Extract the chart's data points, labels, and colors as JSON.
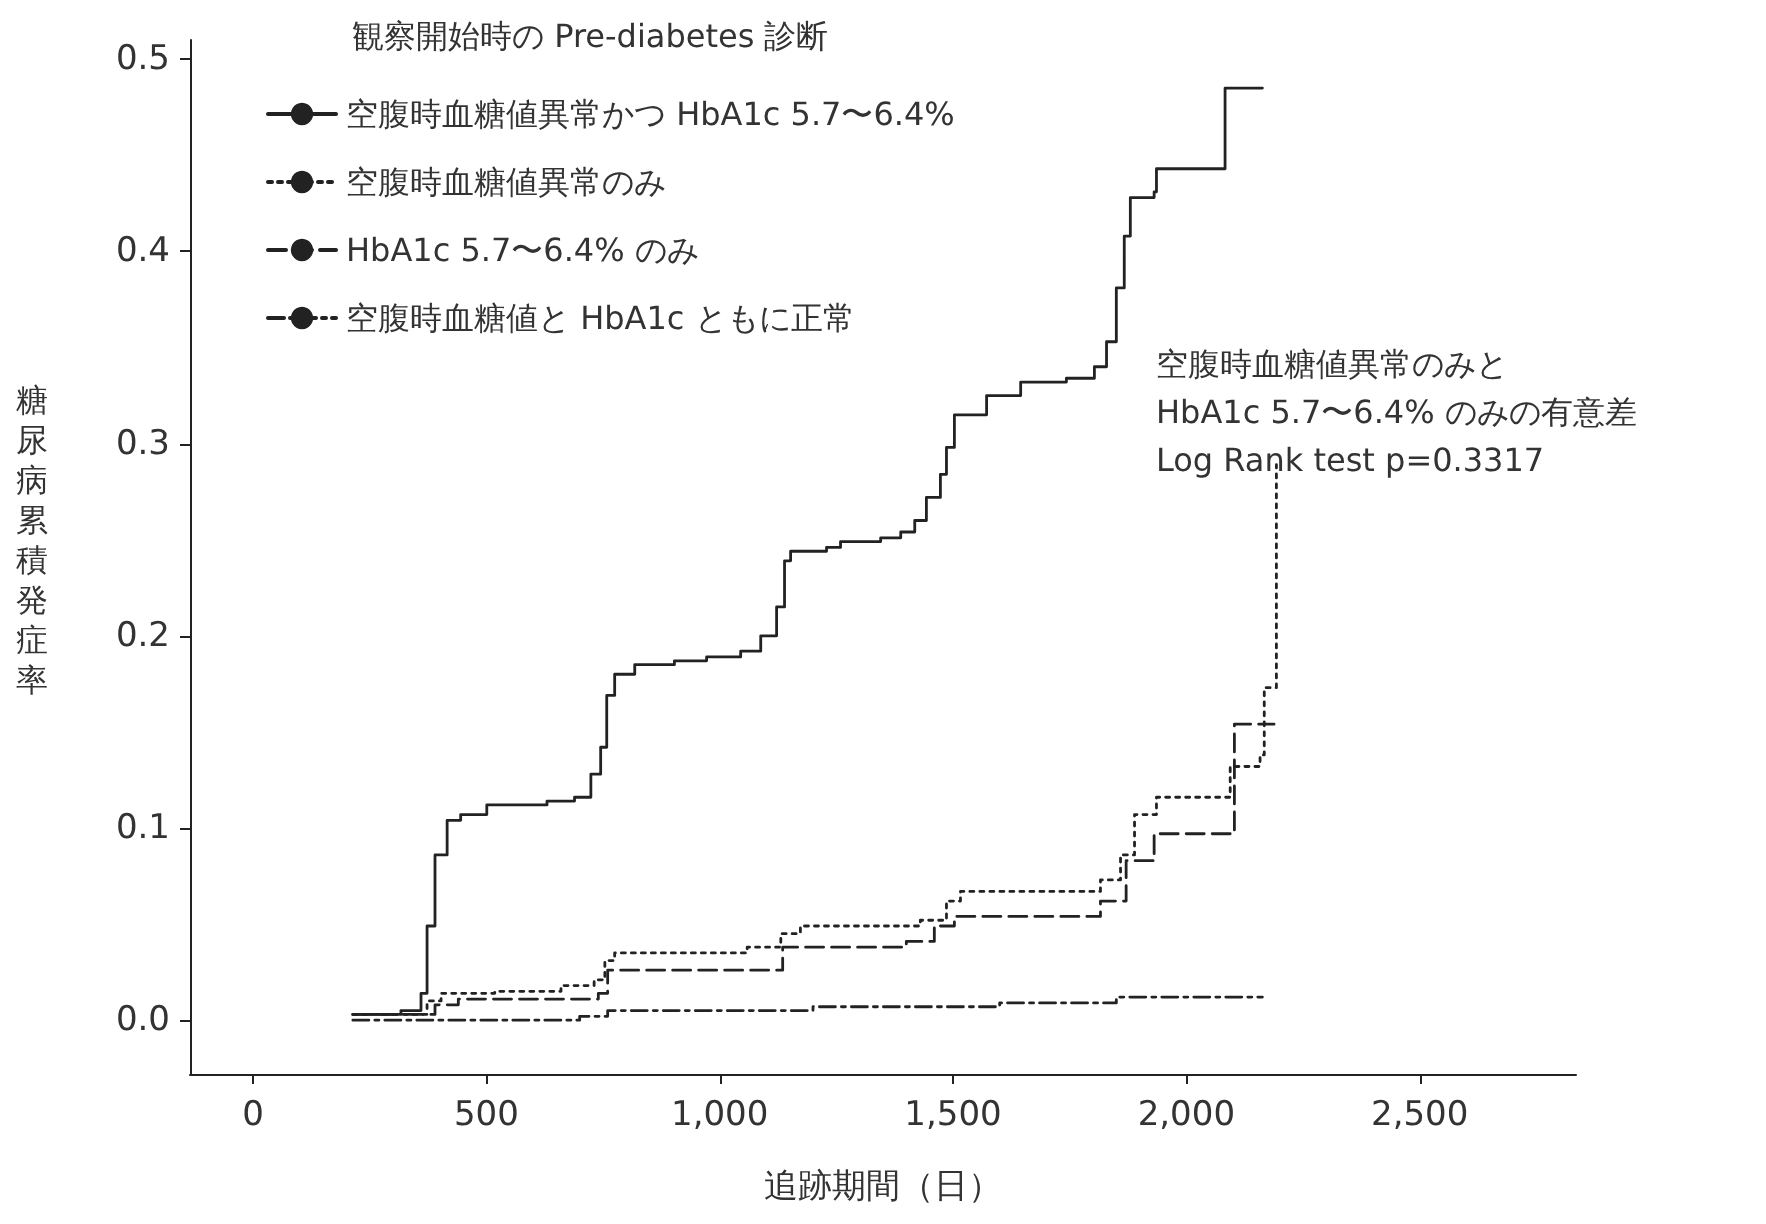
{
  "chart_data": {
    "type": "step",
    "xlabel": "追跡期間（日）",
    "ylabel": "糖尿病累積発症率",
    "legend_title": "観察開始時の Pre-diabetes 診断",
    "legend": "top left",
    "grid": false,
    "marker": "none",
    "xlim": [
      -135,
      2835
    ],
    "xticks": [
      0,
      500,
      {
        "value": 1000,
        "label": "1,000"
      },
      {
        "value": 1500,
        "label": "1,500"
      },
      {
        "value": 2000,
        "label": "2,000"
      },
      {
        "value": 2500,
        "label": "2,500"
      }
    ],
    "ylim": [
      -0.028,
      0.51
    ],
    "yticks": [
      {
        "value": 0,
        "label": "0.0"
      },
      0.1,
      0.2,
      0.3,
      0.4,
      0.5
    ],
    "annotations": [
      "空腹時血糖値異常のみと\nHbA1c 5.7〜6.4% のみの有意差\nLog Rank test p=0.3317"
    ],
    "series": [
      {
        "name": "空腹時血糖値異常かつ HbA1c 5.7〜6.4%",
        "color": "#222222",
        "line_style": "solid",
        "x": [
          214,
          317,
          360,
          373,
          390,
          416,
          445,
          501,
          630,
          689,
          724,
          745,
          758,
          775,
          818,
          903,
          972,
          1045,
          1088,
          1122,
          1139,
          1152,
          1229,
          1259,
          1345,
          1388,
          1418,
          1443,
          1473,
          1486,
          1503,
          1572,
          1645,
          1743,
          1803,
          1829,
          1850,
          1867,
          1880,
          1931,
          1936,
          2083,
          2163
        ],
        "values": [
          0.003,
          0.005,
          0.014,
          0.049,
          0.086,
          0.104,
          0.107,
          0.112,
          0.114,
          0.116,
          0.128,
          0.142,
          0.169,
          0.18,
          0.185,
          0.187,
          0.189,
          0.192,
          0.2,
          0.215,
          0.239,
          0.244,
          0.246,
          0.249,
          0.251,
          0.254,
          0.26,
          0.272,
          0.284,
          0.298,
          0.315,
          0.325,
          0.332,
          0.334,
          0.34,
          0.353,
          0.381,
          0.408,
          0.428,
          0.431,
          0.443,
          0.485,
          0.485
        ]
      },
      {
        "name": "空腹時血糖値異常のみ",
        "color": "#222222",
        "line_style": "dotted",
        "x": [
          214,
          373,
          403,
          518,
          660,
          731,
          754,
          775,
          1059,
          1131,
          1173,
          1430,
          1486,
          1516,
          1816,
          1859,
          1889,
          1936,
          2086,
          2094,
          2158,
          2167,
          2193
        ],
        "values": [
          0.003,
          0.01,
          0.014,
          0.015,
          0.018,
          0.021,
          0.031,
          0.035,
          0.038,
          0.045,
          0.049,
          0.052,
          0.062,
          0.067,
          0.073,
          0.086,
          0.107,
          0.116,
          0.116,
          0.132,
          0.138,
          0.173,
          0.289
        ]
      },
      {
        "name": "HbA1c 5.7〜6.4% のみ",
        "color": "#222222",
        "line_style": "dashed",
        "x": [
          214,
          390,
          440,
          740,
          760,
          1125,
          1135,
          1400,
          1460,
          1503,
          1786,
          1816,
          1871,
          1931,
          2094,
          2103,
          2188
        ],
        "values": [
          0.003,
          0.008,
          0.011,
          0.014,
          0.026,
          0.026,
          0.038,
          0.041,
          0.049,
          0.054,
          0.054,
          0.062,
          0.083,
          0.097,
          0.099,
          0.154,
          0.154
        ]
      },
      {
        "name": "空腹時血糖値と HbA1c ともに正常",
        "color": "#222222",
        "line_style": "dashdot",
        "x": [
          214,
          700,
          760,
          1200,
          1600,
          1850,
          2163
        ],
        "values": [
          0.0,
          0.002,
          0.005,
          0.007,
          0.009,
          0.012,
          0.012
        ]
      }
    ]
  }
}
